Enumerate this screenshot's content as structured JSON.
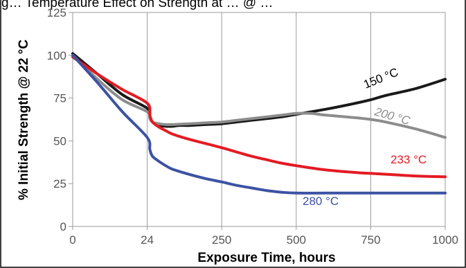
{
  "chart_data": {
    "type": "line",
    "title": "g… Temperature Effect on Strength at … @ …",
    "xlabel": "Exposure Time, hours",
    "ylabel": "% Initial Strength @ 22 °C",
    "x_ticks": [
      "0",
      "24",
      "250",
      "500",
      "750",
      "1000"
    ],
    "y_ticks": [
      "0",
      "25",
      "50",
      "75",
      "100",
      "125"
    ],
    "ylim": [
      0,
      125
    ],
    "grid": "vertical",
    "series": [
      {
        "name": "150 °C",
        "color": "#1a1a1a",
        "x": [
          0,
          8,
          16,
          24,
          32,
          40,
          60,
          80,
          100,
          120,
          150,
          200,
          250,
          300,
          350,
          400,
          450,
          500,
          600,
          700,
          750,
          800,
          900,
          1000
        ],
        "y": [
          101,
          89,
          77,
          69,
          64,
          61,
          59,
          58.5,
          58.5,
          59,
          59,
          59.5,
          60,
          61,
          62,
          63,
          64,
          65.5,
          68.5,
          72,
          74,
          76.5,
          80.5,
          86
        ]
      },
      {
        "name": "200 °C",
        "color": "#8c8c8c",
        "x": [
          0,
          8,
          16,
          24,
          32,
          40,
          60,
          80,
          100,
          150,
          200,
          250,
          300,
          350,
          400,
          450,
          500,
          550,
          600,
          700,
          750,
          800,
          900,
          1000
        ],
        "y": [
          100,
          86,
          74,
          67,
          63,
          61,
          60,
          59.5,
          59.5,
          60,
          60.5,
          61,
          62,
          63,
          64,
          65,
          66,
          66,
          65,
          63.5,
          62.5,
          61,
          57,
          52
        ]
      },
      {
        "name": "233 °C",
        "color": "#e31b23",
        "x": [
          0,
          8,
          16,
          24,
          32,
          40,
          60,
          80,
          100,
          150,
          200,
          250,
          300,
          350,
          400,
          450,
          500,
          600,
          700,
          750,
          800,
          900,
          1000
        ],
        "y": [
          99,
          89,
          80,
          72,
          65,
          61,
          58,
          56,
          54,
          51,
          48.5,
          46,
          43.5,
          41,
          39,
          37,
          35.5,
          33,
          31.5,
          31,
          30.5,
          29.5,
          29
        ]
      },
      {
        "name": "280 °C",
        "color": "#3c52a3",
        "x": [
          0,
          8,
          16,
          24,
          32,
          40,
          60,
          80,
          100,
          150,
          200,
          250,
          300,
          350,
          400,
          450,
          500,
          600,
          700,
          750,
          800,
          900,
          1000
        ],
        "y": [
          100,
          84,
          67,
          52,
          45,
          41,
          38,
          35.5,
          33.5,
          30.5,
          28,
          26,
          24,
          22.5,
          21,
          20,
          19.5,
          19.5,
          19.5,
          19.5,
          19.5,
          19.5,
          19.5
        ]
      }
    ]
  }
}
